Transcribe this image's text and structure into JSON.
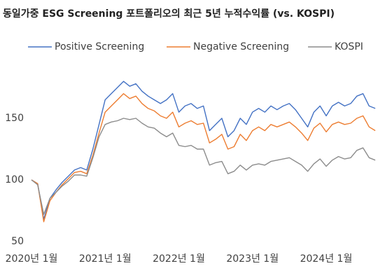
{
  "chart_data": {
    "type": "line",
    "title": "동일가중 ESG Screening 포트폴리오의 최근 5년 누적수익률 (vs. KOSPI)",
    "categories": [
      "2020년 1월",
      null,
      null,
      null,
      null,
      null,
      null,
      null,
      null,
      null,
      null,
      null,
      "2021년 1월",
      null,
      null,
      null,
      null,
      null,
      null,
      null,
      null,
      null,
      null,
      null,
      "2022년 1월",
      null,
      null,
      null,
      null,
      null,
      null,
      null,
      null,
      null,
      null,
      null,
      "2023년 1월",
      null,
      null,
      null,
      null,
      null,
      null,
      null,
      null,
      null,
      null,
      null,
      "2024년 1월",
      null,
      null,
      null,
      null,
      null,
      null,
      null,
      null
    ],
    "series": [
      {
        "name": "Positive Screening",
        "color": "#4472c4",
        "values": [
          100,
          97,
          68,
          85,
          92,
          98,
          103,
          108,
          110,
          108,
          125,
          145,
          165,
          170,
          175,
          180,
          176,
          178,
          172,
          168,
          165,
          162,
          165,
          170,
          155,
          160,
          162,
          158,
          160,
          140,
          145,
          150,
          135,
          140,
          150,
          145,
          155,
          158,
          155,
          160,
          157,
          160,
          162,
          157,
          150,
          143,
          155,
          160,
          152,
          160,
          163,
          160,
          162,
          168,
          170,
          160,
          158
        ]
      },
      {
        "name": "Negative Screening",
        "color": "#ed7d31",
        "values": [
          100,
          97,
          66,
          83,
          90,
          96,
          101,
          106,
          107,
          105,
          120,
          138,
          155,
          160,
          165,
          170,
          166,
          168,
          162,
          158,
          156,
          152,
          150,
          155,
          143,
          146,
          148,
          145,
          146,
          130,
          133,
          137,
          125,
          127,
          137,
          132,
          140,
          143,
          140,
          145,
          143,
          145,
          147,
          143,
          138,
          132,
          142,
          146,
          139,
          145,
          147,
          145,
          146,
          150,
          152,
          143,
          140
        ]
      },
      {
        "name": "KOSPI",
        "color": "#8c8c8c",
        "values": [
          100,
          96,
          72,
          85,
          90,
          95,
          99,
          104,
          104,
          103,
          118,
          135,
          145,
          147,
          148,
          150,
          149,
          150,
          146,
          143,
          142,
          138,
          135,
          138,
          128,
          127,
          128,
          125,
          125,
          112,
          114,
          115,
          105,
          107,
          112,
          108,
          112,
          113,
          112,
          115,
          116,
          117,
          118,
          115,
          112,
          107,
          113,
          117,
          111,
          116,
          119,
          117,
          118,
          124,
          126,
          118,
          116
        ]
      }
    ],
    "ylim": [
      50,
      200
    ],
    "yticks": [
      50,
      100,
      150
    ],
    "legend": "top"
  }
}
